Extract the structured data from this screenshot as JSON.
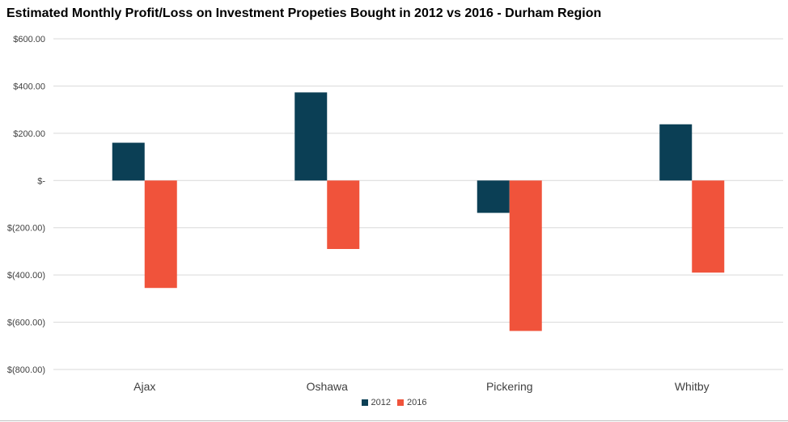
{
  "chart_data": {
    "type": "bar",
    "title": "Estimated Monthly Profit/Loss on Investment Propeties Bought in 2012 vs 2016 - Durham Region",
    "categories": [
      "Ajax",
      "Oshawa",
      "Pickering",
      "Whitby"
    ],
    "series": [
      {
        "name": "2012",
        "color": "#0b3f55",
        "values": [
          160,
          373,
          -137,
          238
        ]
      },
      {
        "name": "2016",
        "color": "#f0533b",
        "values": [
          -455,
          -290,
          -637,
          -390
        ]
      }
    ],
    "ylim": [
      -800,
      600
    ],
    "y_ticks": [
      600,
      400,
      200,
      0,
      -200,
      -400,
      -600,
      -800
    ],
    "y_tick_labels": [
      "$600.00",
      "$400.00",
      "$200.00",
      "$-",
      "$(200.00)",
      "$(400.00)",
      "$(600.00)",
      "$(800.00)"
    ],
    "grid": true,
    "legend_position": "bottom",
    "xlabel": "",
    "ylabel": ""
  }
}
